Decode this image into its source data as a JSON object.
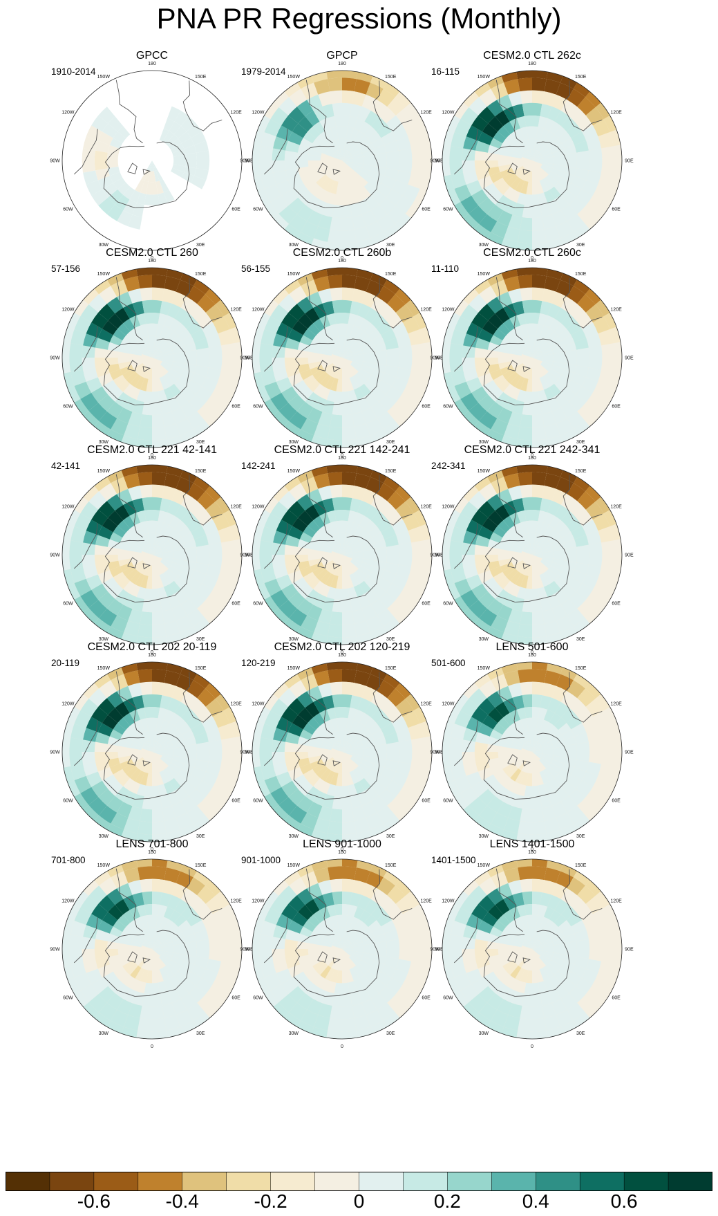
{
  "title": "PNA PR Regressions (Monthly)",
  "chart_data": {
    "type": "heatmap",
    "title": "PNA PR Regressions (Monthly)",
    "projection": "north polar stereographic",
    "longitude_labels": [
      "180",
      "150E",
      "120E",
      "90E",
      "60E",
      "30E",
      "0",
      "30W",
      "60W",
      "90W",
      "120W",
      "150W"
    ],
    "panels": [
      {
        "title": "GPCC",
        "years": "1910-2014",
        "pattern": "gpcc"
      },
      {
        "title": "GPCP",
        "years": "1979-2014",
        "pattern": "obs"
      },
      {
        "title": "CESM2.0 CTL 262c",
        "years": "16-115",
        "pattern": "model"
      },
      {
        "title": "CESM2.0 CTL 260",
        "years": "57-156",
        "pattern": "model"
      },
      {
        "title": "CESM2.0 CTL 260b",
        "years": "56-155",
        "pattern": "model"
      },
      {
        "title": "CESM2.0 CTL 260c",
        "years": "11-110",
        "pattern": "model"
      },
      {
        "title": "CESM2.0 CTL 221 42-141",
        "years": "42-141",
        "pattern": "model"
      },
      {
        "title": "CESM2.0 CTL 221 142-241",
        "years": "142-241",
        "pattern": "model"
      },
      {
        "title": "CESM2.0 CTL 221 242-341",
        "years": "242-341",
        "pattern": "model"
      },
      {
        "title": "CESM2.0 CTL 202 20-119",
        "years": "20-119",
        "pattern": "model"
      },
      {
        "title": "CESM2.0 CTL 202 120-219",
        "years": "120-219",
        "pattern": "model"
      },
      {
        "title": "LENS 501-600",
        "years": "501-600",
        "pattern": "lens"
      },
      {
        "title": "LENS 701-800",
        "years": "701-800",
        "pattern": "lens"
      },
      {
        "title": "LENS 901-1000",
        "years": "901-1000",
        "pattern": "lens"
      },
      {
        "title": "LENS 1401-1500",
        "years": "1401-1500",
        "pattern": "lens"
      }
    ],
    "colorbar": {
      "levels": [
        -0.7,
        -0.6,
        -0.5,
        -0.4,
        -0.3,
        -0.2,
        -0.1,
        0,
        0.1,
        0.2,
        0.3,
        0.4,
        0.5,
        0.6,
        0.7
      ],
      "colors": [
        "#543005",
        "#7a4510",
        "#9b5c17",
        "#bf812d",
        "#dfc27d",
        "#f0dda8",
        "#f6ebd0",
        "#f4efe2",
        "#e2f0ef",
        "#c7eae5",
        "#97d6cc",
        "#5ab4ac",
        "#2f9086",
        "#0e6f62",
        "#01503f",
        "#003c30"
      ],
      "tick_labels": [
        "-0.6",
        "-0.4",
        "-0.2",
        "0",
        "0.2",
        "0.4",
        "0.6"
      ],
      "tick_values": [
        -0.6,
        -0.4,
        -0.2,
        0,
        0.2,
        0.4,
        0.6
      ]
    }
  }
}
